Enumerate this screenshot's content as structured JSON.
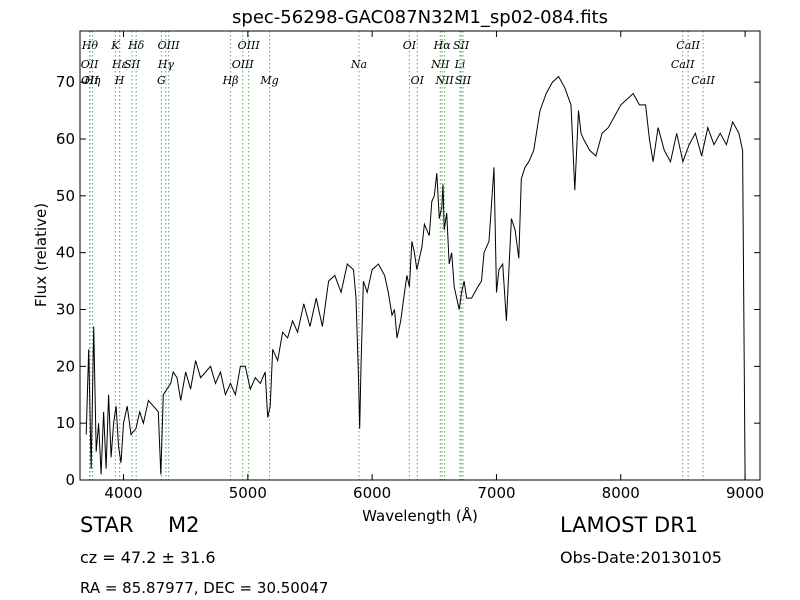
{
  "chart_data": {
    "type": "line",
    "title": "spec-56298-GAC087N32M1_sp02-084.fits",
    "xlabel": "Wavelength (Å)",
    "ylabel": "Flux (relative)",
    "xlim": [
      3650,
      9120
    ],
    "ylim": [
      0,
      79
    ],
    "xticks": [
      4000,
      5000,
      6000,
      7000,
      8000,
      9000
    ],
    "yticks": [
      0,
      10,
      20,
      30,
      40,
      50,
      60,
      70
    ],
    "grid": false,
    "series_color": "#000000",
    "line_color": "#55aa55",
    "x": [
      3700,
      3720,
      3740,
      3760,
      3780,
      3800,
      3820,
      3840,
      3860,
      3880,
      3900,
      3920,
      3940,
      3960,
      3980,
      4000,
      4030,
      4060,
      4100,
      4130,
      4160,
      4200,
      4240,
      4280,
      4300,
      4320,
      4350,
      4380,
      4400,
      4430,
      4460,
      4500,
      4540,
      4580,
      4620,
      4660,
      4700,
      4740,
      4780,
      4820,
      4860,
      4900,
      4940,
      4980,
      5020,
      5060,
      5100,
      5140,
      5160,
      5180,
      5200,
      5240,
      5280,
      5320,
      5360,
      5400,
      5450,
      5500,
      5550,
      5600,
      5650,
      5700,
      5750,
      5800,
      5850,
      5870,
      5890,
      5900,
      5910,
      5930,
      5960,
      6000,
      6050,
      6100,
      6130,
      6160,
      6180,
      6200,
      6230,
      6260,
      6280,
      6300,
      6320,
      6340,
      6360,
      6380,
      6400,
      6420,
      6440,
      6460,
      6480,
      6500,
      6520,
      6540,
      6560,
      6570,
      6580,
      6600,
      6620,
      6640,
      6660,
      6680,
      6700,
      6720,
      6740,
      6760,
      6800,
      6850,
      6880,
      6900,
      6940,
      6980,
      7000,
      7020,
      7050,
      7080,
      7120,
      7150,
      7180,
      7200,
      7230,
      7260,
      7300,
      7350,
      7400,
      7450,
      7500,
      7550,
      7600,
      7630,
      7660,
      7680,
      7700,
      7750,
      7800,
      7850,
      7900,
      7950,
      8000,
      8050,
      8100,
      8150,
      8200,
      8230,
      8260,
      8300,
      8350,
      8400,
      8450,
      8500,
      8550,
      8600,
      8650,
      8700,
      8750,
      8800,
      8850,
      8900,
      8950,
      8980,
      9000,
      9010
    ],
    "y": [
      8,
      23,
      2,
      27,
      5,
      10,
      1,
      12,
      2,
      15,
      4,
      10,
      13,
      6,
      3,
      10,
      13,
      8,
      9,
      12,
      10,
      14,
      13,
      12,
      1,
      15,
      16,
      17,
      19,
      18,
      14,
      19,
      16,
      21,
      18,
      19,
      20,
      17,
      19,
      15,
      17,
      15,
      20,
      20,
      16,
      18,
      17,
      19,
      11,
      13,
      23,
      21,
      26,
      25,
      28,
      26,
      31,
      27,
      32,
      27,
      35,
      36,
      33,
      38,
      37,
      32,
      18,
      9,
      20,
      35,
      33,
      37,
      38,
      36,
      33,
      29,
      30,
      25,
      28,
      33,
      36,
      34,
      42,
      40,
      37,
      39,
      41,
      45,
      44,
      43,
      49,
      50,
      54,
      46,
      48,
      52,
      44,
      47,
      38,
      40,
      34,
      32,
      30,
      33,
      35,
      32,
      32,
      34,
      35,
      40,
      42,
      55,
      33,
      37,
      38,
      28,
      46,
      44,
      39,
      53,
      55,
      56,
      58,
      65,
      68,
      70,
      71,
      69,
      66,
      51,
      65,
      61,
      60,
      58,
      57,
      61,
      62,
      64,
      66,
      67,
      68,
      66,
      66,
      60,
      56,
      62,
      58,
      56,
      61,
      56,
      59,
      61,
      57,
      62,
      59,
      61,
      59,
      63,
      61,
      58,
      0,
      0
    ],
    "lines": [
      {
        "label": "Hθ",
        "x": 3730,
        "row": 0
      },
      {
        "label": "OII",
        "x": 3727,
        "row": 1
      },
      {
        "label": "OII",
        "x": 3729,
        "row": 2
      },
      {
        "label": "Hη",
        "x": 3750,
        "row": 2
      },
      {
        "label": "K",
        "x": 3934,
        "row": 0
      },
      {
        "label": "Hε",
        "x": 3970,
        "row": 1
      },
      {
        "label": "H",
        "x": 3968,
        "row": 2
      },
      {
        "label": "SII",
        "x": 4069,
        "row": 1
      },
      {
        "label": "Hδ",
        "x": 4102,
        "row": 0
      },
      {
        "label": "OIII",
        "x": 4363,
        "row": 0
      },
      {
        "label": "Hγ",
        "x": 4341,
        "row": 1
      },
      {
        "label": "G",
        "x": 4305,
        "row": 2
      },
      {
        "label": "Hβ",
        "x": 4861,
        "row": 2
      },
      {
        "label": "OIII",
        "x": 4959,
        "row": 1
      },
      {
        "label": "OIII",
        "x": 5007,
        "row": 0
      },
      {
        "label": "Mg",
        "x": 5175,
        "row": 2
      },
      {
        "label": "Na",
        "x": 5894,
        "row": 1
      },
      {
        "label": "OI",
        "x": 6300,
        "row": 0
      },
      {
        "label": "OI",
        "x": 6363,
        "row": 2
      },
      {
        "label": "NII",
        "x": 6548,
        "row": 1
      },
      {
        "label": "NII",
        "x": 6583,
        "row": 2
      },
      {
        "label": "Hα",
        "x": 6563,
        "row": 0
      },
      {
        "label": "Li",
        "x": 6707,
        "row": 1
      },
      {
        "label": "SII",
        "x": 6716,
        "row": 0
      },
      {
        "label": "SII",
        "x": 6731,
        "row": 2
      },
      {
        "label": "CaII",
        "x": 8498,
        "row": 1
      },
      {
        "label": "CaII",
        "x": 8542,
        "row": 0
      },
      {
        "label": "CaII",
        "x": 8662,
        "row": 2
      }
    ]
  },
  "info": {
    "object_class": "STAR",
    "subclass": "M2",
    "survey": "LAMOST DR1",
    "cz": "cz = 47.2  ± 31.6",
    "obs_date": "Obs-Date:20130105",
    "radec": "RA = 85.87977, DEC = 30.50047"
  }
}
